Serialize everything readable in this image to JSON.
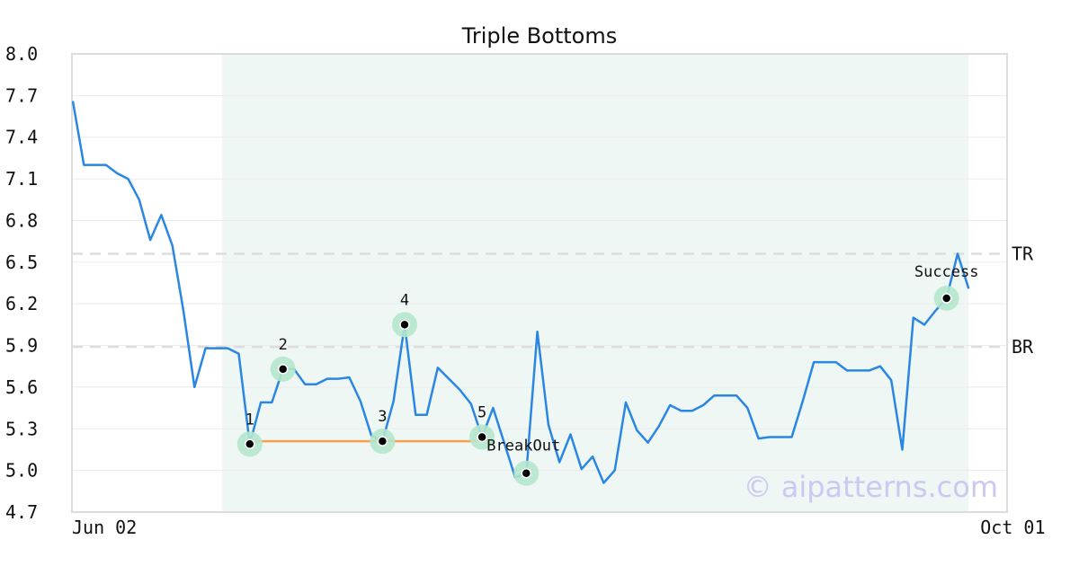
{
  "chart_data": {
    "type": "line",
    "title": "Triple Bottoms",
    "ylim": [
      4.7,
      8.0
    ],
    "y_ticks": [
      "8.0",
      "7.7",
      "7.4",
      "7.1",
      "6.8",
      "6.5",
      "6.2",
      "5.9",
      "5.6",
      "5.3",
      "5.0",
      "4.7"
    ],
    "x_ticks": [
      {
        "label": "Jun 02",
        "index": 0
      },
      {
        "label": "Oct 01",
        "index": 85
      }
    ],
    "grid": true,
    "series": [
      {
        "color": "#2a86e3",
        "values": [
          7.66,
          7.2,
          7.2,
          7.2,
          7.14,
          7.1,
          6.95,
          6.66,
          6.84,
          6.62,
          6.15,
          5.6,
          5.88,
          5.88,
          5.88,
          5.84,
          5.19,
          5.49,
          5.49,
          5.73,
          5.73,
          5.62,
          5.62,
          5.66,
          5.66,
          5.67,
          5.5,
          5.25,
          5.21,
          5.5,
          6.05,
          5.4,
          5.4,
          5.74,
          5.66,
          5.58,
          5.48,
          5.24,
          5.45,
          5.2,
          4.95,
          4.98,
          6.0,
          5.33,
          5.06,
          5.26,
          5.01,
          5.1,
          4.91,
          5.0,
          5.49,
          5.29,
          5.2,
          5.32,
          5.47,
          5.43,
          5.43,
          5.47,
          5.54,
          5.54,
          5.54,
          5.45,
          5.23,
          5.24,
          5.24,
          5.24,
          5.5,
          5.78,
          5.78,
          5.78,
          5.72,
          5.72,
          5.72,
          5.75,
          5.65,
          5.15,
          6.1,
          6.05,
          6.15,
          6.24,
          6.56,
          6.31
        ]
      }
    ],
    "pattern_region": {
      "start_index": 14,
      "end_index": 81,
      "color": "#eef7f3"
    },
    "levels": [
      {
        "label": "TR",
        "value": 6.56
      },
      {
        "label": "BR",
        "value": 5.89
      }
    ],
    "support_line": {
      "from_index": 16,
      "to_index": 37,
      "value": 5.21,
      "color": "#f5a04a"
    },
    "points": [
      {
        "label": "1",
        "index": 16,
        "value": 5.19
      },
      {
        "label": "2",
        "index": 19,
        "value": 5.73
      },
      {
        "label": "3",
        "index": 28,
        "value": 5.21
      },
      {
        "label": "4",
        "index": 30,
        "value": 6.05
      },
      {
        "label": "5",
        "index": 37,
        "value": 5.24
      },
      {
        "label": "BreakOut",
        "index": 41,
        "value": 4.98
      },
      {
        "label": "Success",
        "index": 79,
        "value": 6.24
      }
    ],
    "watermark": "© aipatterns.com"
  }
}
